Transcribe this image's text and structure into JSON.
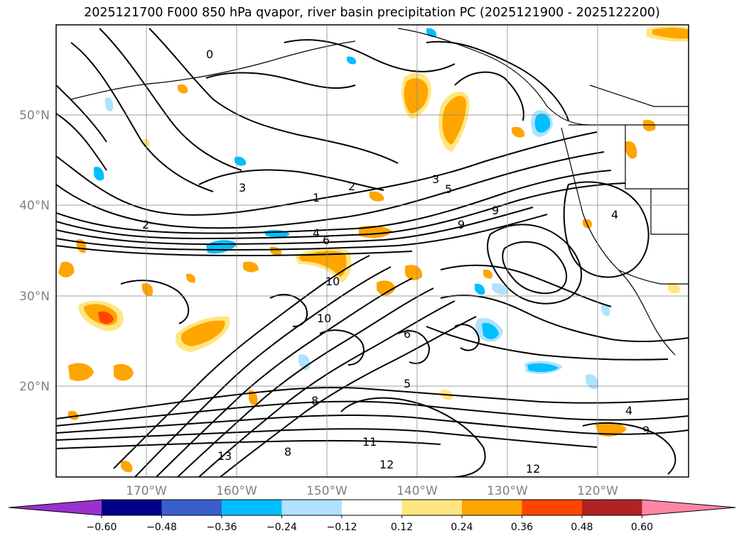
{
  "title": "2025121700 F000 850 hPa qvapor, river basin precipitation PC (2025121900 - 2025122200)",
  "lat_labels": [
    "50°N",
    "40°N",
    "30°N",
    "20°N"
  ],
  "lon_labels": [
    "170°W",
    "160°W",
    "150°W",
    "140°W",
    "130°W",
    "120°W"
  ],
  "colorbar": {
    "colors": [
      "#9932cc",
      "#00008b",
      "#3a5fcd",
      "#00bfff",
      "#b0e2ff",
      "#ffffff",
      "#ffe680",
      "#ffa500",
      "#ff4500",
      "#b22222",
      "#ff86a6"
    ],
    "labels": [
      "−0.60",
      "−0.48",
      "−0.36",
      "−0.24",
      "−0.12",
      "0.12",
      "0.24",
      "0.36",
      "0.48",
      "0.60"
    ]
  },
  "contour_labels": [
    "0",
    "1",
    "2",
    "3",
    "4",
    "5",
    "6",
    "8",
    "9",
    "10",
    "11",
    "12",
    "13"
  ]
}
